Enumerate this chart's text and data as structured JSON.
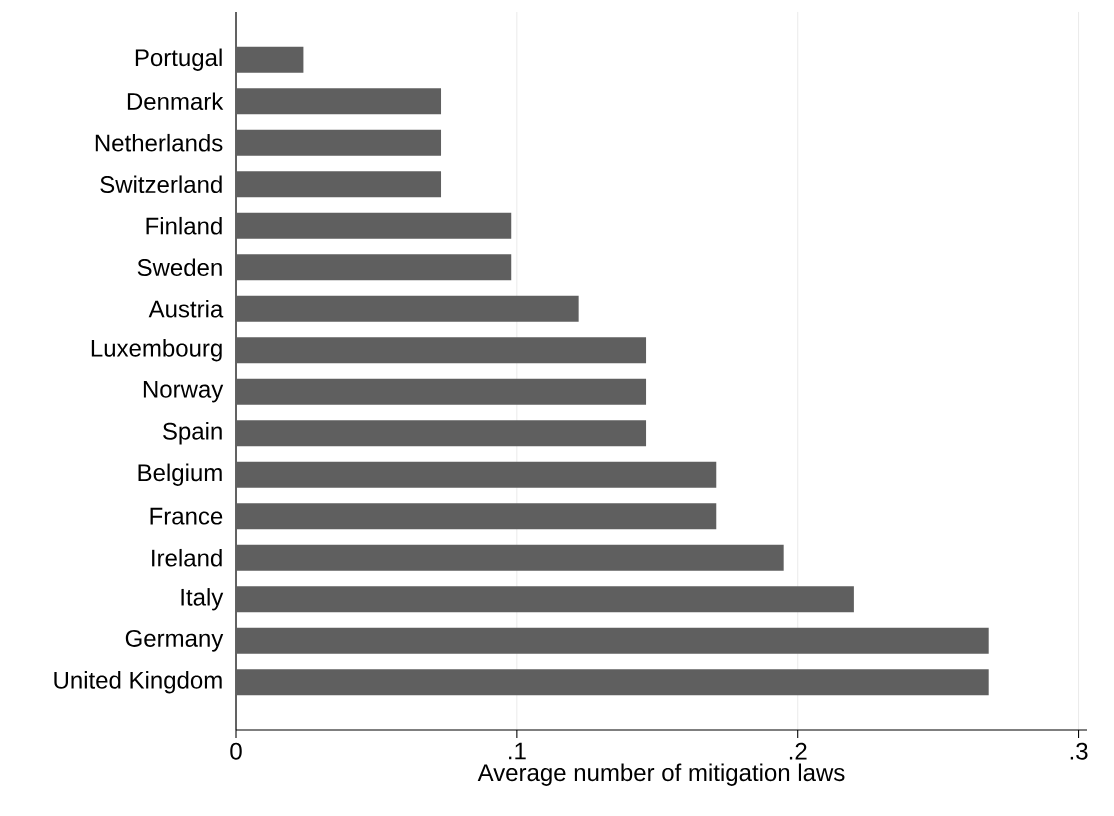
{
  "chart_data": {
    "type": "bar",
    "orientation": "horizontal",
    "categories": [
      "Portugal",
      "Denmark",
      "Netherlands",
      "Switzerland",
      "Finland",
      "Sweden",
      "Austria",
      "Luxembourg",
      "Norway",
      "Spain",
      "Belgium",
      "France",
      "Ireland",
      "Italy",
      "Germany",
      "United Kingdom"
    ],
    "values": [
      0.024,
      0.073,
      0.073,
      0.073,
      0.098,
      0.098,
      0.122,
      0.146,
      0.146,
      0.146,
      0.171,
      0.171,
      0.195,
      0.22,
      0.268,
      0.268
    ],
    "color": "#5f5f5f",
    "xlabel": "Average number of mitigation laws",
    "xlim": [
      0,
      0.303
    ],
    "xticks": [
      0,
      {
        "value": 0.1,
        "label": ".1"
      },
      {
        "value": 0.2,
        "label": ".2"
      },
      {
        "value": 0.3,
        "label": ".3"
      }
    ],
    "grid": "x"
  }
}
